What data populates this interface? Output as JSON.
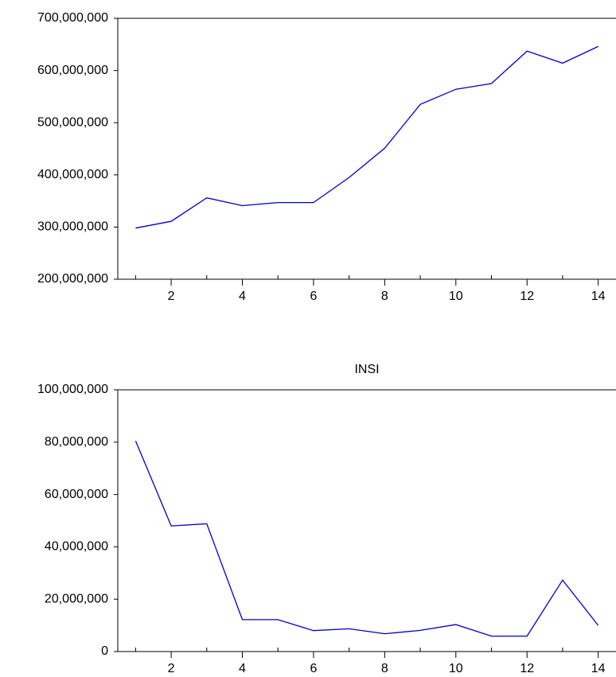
{
  "chart_data": [
    {
      "type": "line",
      "title": "",
      "xlabel": "",
      "ylabel": "",
      "x": [
        1,
        2,
        3,
        4,
        5,
        6,
        7,
        8,
        9,
        10,
        11,
        12,
        13,
        14
      ],
      "xticks": [
        2,
        4,
        6,
        8,
        10,
        12,
        14
      ],
      "xlim": [
        0.5,
        14.5
      ],
      "ylim": [
        200000000,
        700000000
      ],
      "yticks": [
        200000000,
        300000000,
        400000000,
        500000000,
        600000000,
        700000000
      ],
      "ytick_labels": [
        "200,000,000",
        "300,000,000",
        "400,000,000",
        "500,000,000",
        "600,000,000",
        "700,000,000"
      ],
      "series": [
        {
          "color": "#0000cc",
          "values": [
            298000000,
            311000000,
            356000000,
            341000000,
            347000000,
            347000000,
            395000000,
            451000000,
            535000000,
            564000000,
            575000000,
            637000000,
            614000000,
            646000000
          ]
        }
      ],
      "grid": false,
      "legend": "none"
    },
    {
      "type": "line",
      "title": "INSI",
      "xlabel": "",
      "ylabel": "",
      "x": [
        1,
        2,
        3,
        4,
        5,
        6,
        7,
        8,
        9,
        10,
        11,
        12,
        13,
        14
      ],
      "xticks": [
        2,
        4,
        6,
        8,
        10,
        12,
        14
      ],
      "xlim": [
        0.5,
        14.5
      ],
      "ylim": [
        0,
        100000000
      ],
      "yticks": [
        0,
        20000000,
        40000000,
        60000000,
        80000000,
        100000000
      ],
      "ytick_labels": [
        "0",
        "20,000,000",
        "40,000,000",
        "60,000,000",
        "80,000,000",
        "100,000,000"
      ],
      "series": [
        {
          "color": "#0000cc",
          "values": [
            80500000,
            48000000,
            48800000,
            12200000,
            12200000,
            8000000,
            8700000,
            6800000,
            8100000,
            10300000,
            5900000,
            5900000,
            27300000,
            10000000
          ]
        }
      ],
      "grid": false,
      "legend": "none"
    }
  ]
}
